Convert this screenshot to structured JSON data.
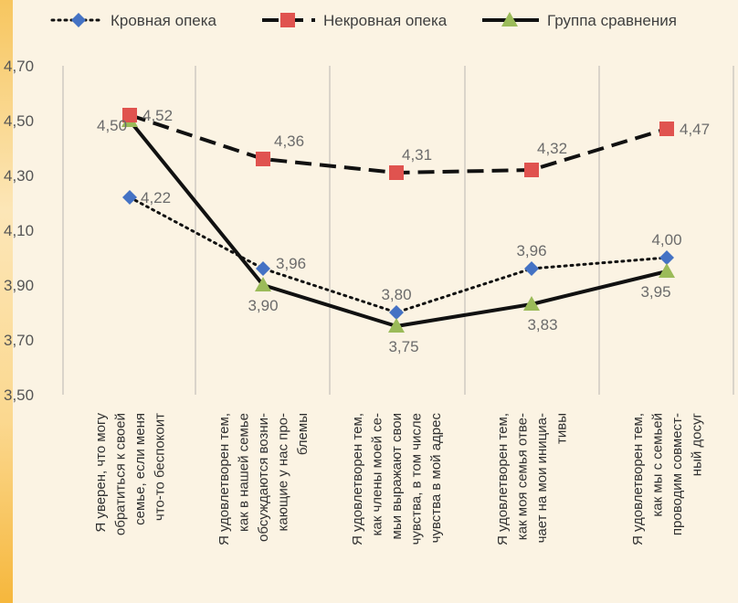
{
  "chart_data": {
    "type": "line",
    "title": "",
    "xlabel": "",
    "ylabel": "",
    "ylim": [
      3.5,
      4.7
    ],
    "yticks": [
      "3,50",
      "3,70",
      "3,90",
      "4,10",
      "4,30",
      "4,50",
      "4,70"
    ],
    "grid": "vertical",
    "legend_position": "top",
    "categories": [
      [
        "Я уверен, что могу",
        "обратиться к своей",
        "семье, если меня",
        "что-то беспокоит"
      ],
      [
        "Я удовлетворен тем,",
        "как в нашей семье",
        "обсуждаются возни-",
        "кающие у нас про-",
        "блемы"
      ],
      [
        "Я удовлетворен тем,",
        "как члены моей се-",
        "мьи выражают свои",
        "чувства, в том числе",
        "чувства в мой адрес"
      ],
      [
        "Я удовлетворен тем,",
        "как моя семья отве-",
        "чает на мои инициа-",
        "тивы"
      ],
      [
        "Я удовлетворен тем,",
        "как мы с семьей",
        "проводим совмест-",
        "ный досуг"
      ]
    ],
    "series": [
      {
        "name": "Кровная опека",
        "style": "dotted",
        "marker": "diamond",
        "color": "#4472c4",
        "values": [
          4.22,
          3.96,
          3.8,
          3.96,
          4.0
        ],
        "labels": [
          "4,22",
          "3,96",
          "3,80",
          "3,96",
          "4,00"
        ]
      },
      {
        "name": "Некровная опека",
        "style": "dashed",
        "marker": "square",
        "color": "#e0534f",
        "values": [
          4.52,
          4.36,
          4.31,
          4.32,
          4.47
        ],
        "labels": [
          "4,52",
          "4,36",
          "4,31",
          "4,32",
          "4,47"
        ]
      },
      {
        "name": "Группа сравнения",
        "style": "solid",
        "marker": "triangle",
        "color": "#9bbb59",
        "values": [
          4.5,
          3.9,
          3.75,
          3.83,
          3.95
        ],
        "labels": [
          "4,50",
          "3,90",
          "3,75",
          "3,83",
          "3,95"
        ]
      }
    ]
  }
}
